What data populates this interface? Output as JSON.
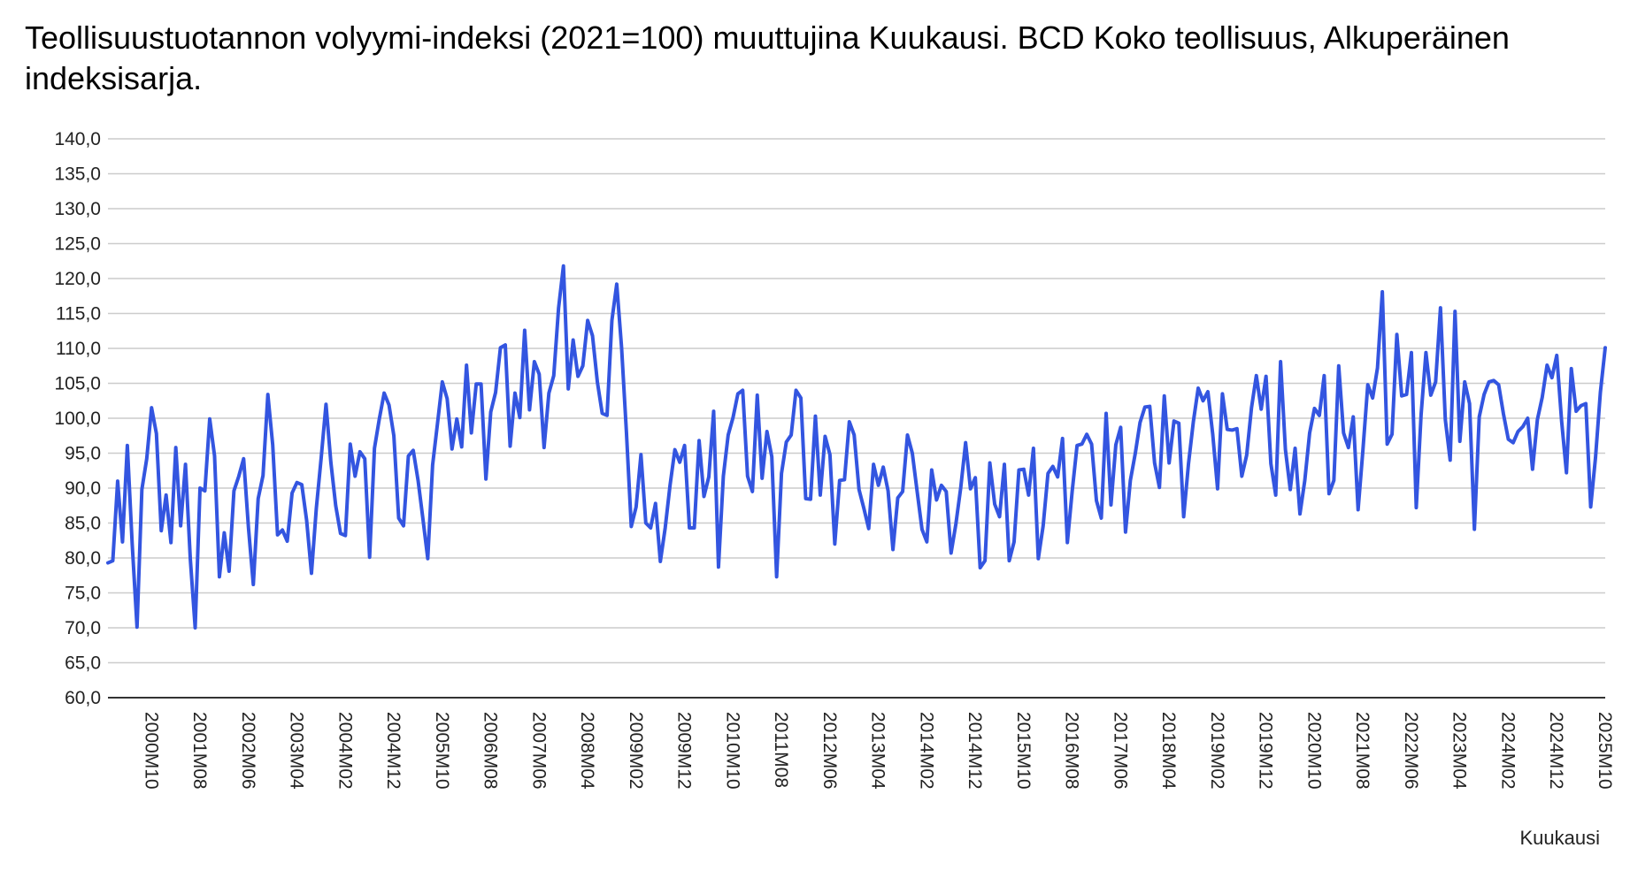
{
  "chart_data": {
    "type": "line",
    "title": "Teollisuustuotannon volyymi-indeksi (2021=100) muuttujina Kuukausi. BCD Koko teollisuus, Alkuperäinen indeksisarja.",
    "xlabel": "Kuukausi",
    "ylabel": "",
    "ylim": [
      60,
      140
    ],
    "yticks": [
      "60,0",
      "65,0",
      "70,0",
      "75,0",
      "80,0",
      "85,0",
      "90,0",
      "95,0",
      "100,0",
      "105,0",
      "110,0",
      "115,0",
      "120,0",
      "125,0",
      "130,0",
      "135,0",
      "140,0"
    ],
    "x_range": [
      "2000M01",
      "2025M10"
    ],
    "xticks": [
      "2000M10",
      "2001M08",
      "2002M06",
      "2003M04",
      "2004M02",
      "2004M12",
      "2005M10",
      "2006M08",
      "2007M06",
      "2008M04",
      "2009M02",
      "2009M12",
      "2010M10",
      "2011M08",
      "2012M06",
      "2013M04",
      "2014M02",
      "2014M12",
      "2015M10",
      "2016M08",
      "2017M06",
      "2018M04",
      "2019M02",
      "2019M12",
      "2020M10",
      "2021M08",
      "2022M06",
      "2023M04",
      "2024M02",
      "2024M12",
      "2025M10"
    ],
    "grid": true,
    "legend": "none",
    "colors": {
      "line": "#3355e0",
      "grid": "#cccccc",
      "axis": "#333333"
    },
    "series": [
      {
        "values": [
          79.3,
          79.6,
          91.0,
          82.3,
          96.1,
          82.0,
          70.1,
          89.8,
          94.2,
          101.5,
          97.8,
          83.9,
          89.0,
          82.2,
          95.8,
          84.6,
          93.4,
          79.8,
          70.0,
          90.0,
          89.6,
          99.9,
          94.6,
          77.3,
          83.6,
          78.1,
          89.6,
          91.7,
          94.2,
          84.3,
          76.2,
          88.5,
          91.8,
          103.4,
          96.2,
          83.3,
          84.0,
          82.4,
          89.3,
          90.8,
          90.5,
          85.4,
          77.8,
          87.1,
          94.3,
          102.0,
          93.7,
          87.5,
          83.5,
          83.2,
          96.3,
          91.7,
          95.2,
          94.2,
          80.1,
          95.7,
          99.9,
          103.6,
          101.9,
          97.5,
          85.7,
          84.6,
          94.6,
          95.4,
          91.1,
          85.6,
          79.9,
          93.3,
          99.2,
          105.2,
          102.8,
          95.6,
          99.9,
          95.9,
          107.6,
          97.9,
          104.9,
          104.9,
          91.3,
          100.9,
          103.7,
          110.1,
          110.5,
          96.0,
          103.6,
          100.1,
          112.6,
          101.2,
          108.1,
          106.3,
          95.8,
          103.6,
          106.1,
          115.8,
          121.8,
          104.2,
          111.2,
          106.0,
          107.5,
          114.0,
          111.8,
          105.2,
          100.7,
          100.4,
          114.0,
          119.2,
          110.1,
          98.0,
          84.5,
          87.3,
          94.8,
          85.0,
          84.3,
          87.8,
          79.5,
          84.3,
          90.4,
          95.5,
          93.7,
          96.1,
          84.3,
          84.3,
          96.8,
          88.8,
          91.6,
          101.0,
          78.7,
          91.7,
          97.6,
          100.1,
          103.5,
          104.0,
          91.7,
          89.5,
          103.3,
          91.4,
          98.1,
          94.5,
          77.3,
          92.1,
          96.6,
          97.6,
          104.0,
          102.9,
          88.5,
          88.4,
          100.3,
          89.0,
          97.4,
          94.8,
          82.0,
          91.1,
          91.2,
          99.5,
          97.6,
          89.8,
          87.1,
          84.2,
          93.4,
          90.4,
          93.0,
          89.6,
          81.2,
          88.6,
          89.5,
          97.6,
          95.0,
          89.5,
          84.1,
          82.3,
          92.6,
          88.3,
          90.4,
          89.5,
          80.7,
          84.9,
          90.1,
          96.5,
          89.9,
          91.5,
          78.6,
          79.6,
          93.6,
          87.7,
          85.9,
          93.4,
          79.6,
          82.3,
          92.6,
          92.7,
          89.0,
          95.7,
          79.9,
          84.6,
          92.1,
          93.1,
          91.6,
          97.1,
          82.2,
          89.6,
          96.1,
          96.3,
          97.7,
          96.3,
          88.2,
          85.7,
          100.7,
          87.6,
          96.2,
          98.7,
          83.7,
          91.1,
          94.9,
          99.4,
          101.6,
          101.7,
          93.6,
          90.1,
          103.2,
          93.6,
          99.6,
          99.3,
          85.9,
          93.5,
          99.5,
          104.3,
          102.5,
          103.8,
          97.7,
          89.9,
          103.5,
          98.4,
          98.3,
          98.5,
          91.7,
          94.7,
          101.5,
          106.1,
          101.3,
          106.0,
          93.5,
          89.0,
          108.1,
          95.5,
          89.8,
          95.7,
          86.3,
          91.1,
          97.9,
          101.4,
          100.4,
          106.1,
          89.2,
          91.1,
          107.5,
          97.9,
          95.8,
          100.2,
          86.9,
          95.5,
          104.8,
          102.9,
          107.2,
          118.1,
          96.3,
          97.7,
          112.0,
          103.2,
          103.4,
          109.4,
          87.2,
          100.5,
          109.4,
          103.3,
          105.2,
          115.8,
          99.8,
          94.0,
          115.3,
          96.7,
          105.2,
          102.1,
          84.1,
          100.2,
          103.4,
          105.2,
          105.4,
          104.8,
          100.6,
          97.0,
          96.5,
          98.1,
          98.8,
          100.0,
          92.7,
          99.8,
          103.0,
          107.6,
          105.8,
          109.0,
          99.6,
          92.2,
          107.1,
          101.0,
          101.8,
          102.1,
          87.3,
          94.4,
          103.7,
          110.1
        ]
      }
    ]
  }
}
